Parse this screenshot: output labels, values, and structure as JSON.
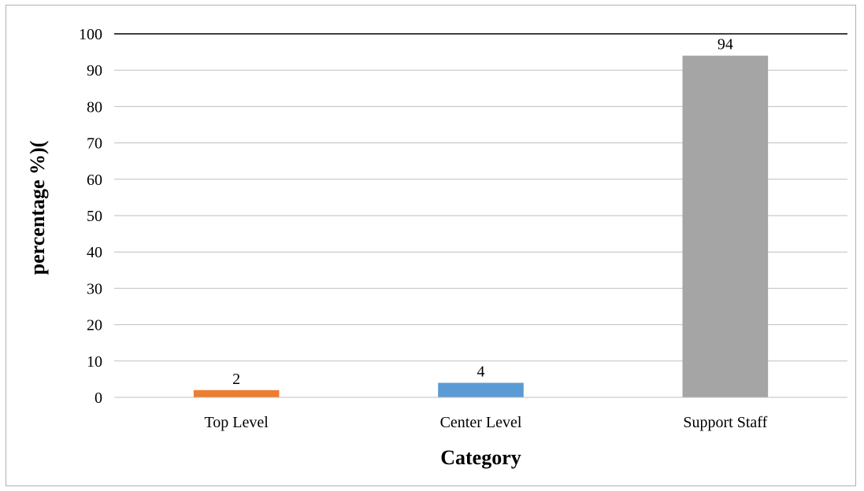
{
  "chart_data": {
    "type": "bar",
    "title": "",
    "xlabel": "Category",
    "ylabel": "percentage %)(",
    "categories": [
      "Top Level",
      "Center Level",
      "Support Staff"
    ],
    "values": [
      2,
      4,
      94
    ],
    "data_labels": [
      "2",
      "4",
      "94"
    ],
    "colors": [
      "#ED7D31",
      "#5B9BD5",
      "#A5A5A5"
    ],
    "ylim": [
      0,
      100
    ],
    "y_ticks": [
      "0",
      "10",
      "20",
      "30",
      "40",
      "50",
      "60",
      "70",
      "80",
      "90",
      "100"
    ],
    "grid": true,
    "legend": "none"
  }
}
